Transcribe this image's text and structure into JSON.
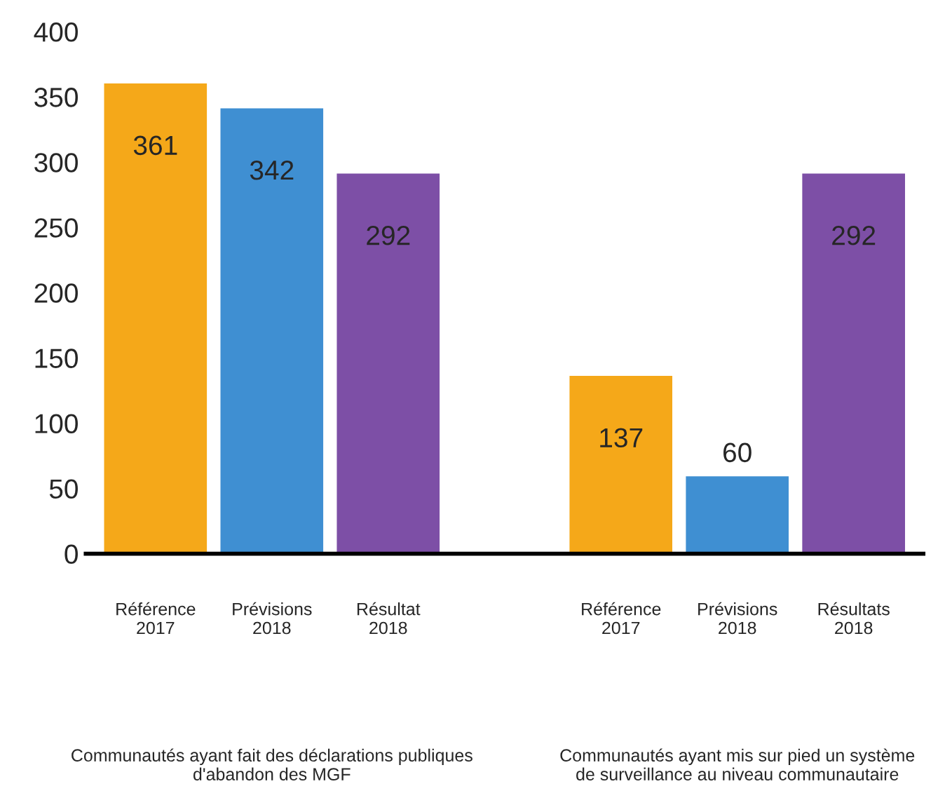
{
  "chart_data": {
    "type": "bar",
    "categories": [
      "Référence\n2017",
      "Prévisions\n2018",
      "Résultat\n2018",
      null,
      "Référence\n2017",
      "Prévisions\n2018",
      "Résultats\n2018"
    ],
    "values": [
      361,
      342,
      292,
      null,
      137,
      60,
      292
    ],
    "colors": [
      "#f5a819",
      "#3f8fd2",
      "#7d4fa6",
      "#ffffff",
      "#f5a819",
      "#3f8fd2",
      "#7d4fa6"
    ],
    "data_labels": true,
    "ylim": [
      0,
      400
    ],
    "yticks": [
      0,
      50,
      100,
      150,
      200,
      250,
      300,
      350,
      400
    ],
    "grid": false,
    "annotations": [
      "Communautés ayant fait des déclarations publiques\nd'abandon des MGF",
      "Communautés ayant mis sur pied un système\nde surveillance au niveau communautaire"
    ]
  }
}
